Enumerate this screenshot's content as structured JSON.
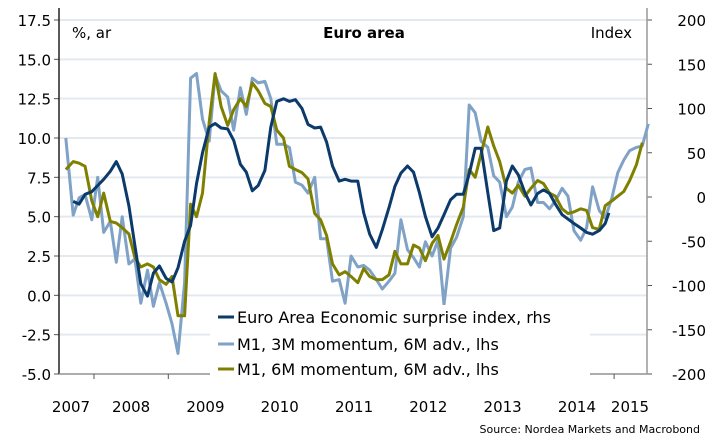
{
  "chart_data": {
    "type": "line",
    "title": "Euro area",
    "left_unit_label": "%, ar",
    "right_unit_label": "Index",
    "source": "Source: Nordea Markets and Macrobond",
    "grid": true,
    "legend_position": "bottom-center",
    "y_left": {
      "range": [
        -5.0,
        17.5
      ],
      "ticks": [
        "17.5",
        "15.0",
        "12.5",
        "10.0",
        "7.5",
        "5.0",
        "2.5",
        "0.0",
        "-2.5",
        "-5.0"
      ],
      "tick_values": [
        17.5,
        15,
        12.5,
        10,
        7.5,
        5,
        2.5,
        0,
        -2.5,
        -5
      ]
    },
    "y_right": {
      "range": [
        -200,
        200
      ],
      "ticks": [
        "200",
        "150",
        "100",
        "50",
        "0",
        "-50",
        "-100",
        "-150",
        "-200"
      ],
      "tick_values": [
        200,
        150,
        100,
        50,
        0,
        -50,
        -100,
        -150,
        -200
      ]
    },
    "x": {
      "range": [
        2007.62,
        2015.9
      ],
      "tick_labels": [
        "2007",
        "2008",
        "2009",
        "2010",
        "2011",
        "2012",
        "2013",
        "2014",
        "2015"
      ],
      "label_years": [
        2007,
        2008,
        2009,
        2010,
        2011,
        2012,
        2013,
        2014,
        2015
      ],
      "boundary_ticks": [
        2008,
        2009,
        2010,
        2011,
        2012,
        2013,
        2014,
        2015
      ]
    },
    "colors": {
      "surprise": "#0b3a6b",
      "m1_3m": "#7fa2c6",
      "m1_6m": "#808000",
      "grid": "#e3e9ef",
      "axis": "#555555"
    },
    "series": [
      {
        "name": "Euro Area Economic surprise index, rhs",
        "axis": "right",
        "color_key": "surprise",
        "points": [
          [
            2007.72,
            -5
          ],
          [
            2007.8,
            -8
          ],
          [
            2007.88,
            3
          ],
          [
            2007.97,
            6
          ],
          [
            2008.05,
            13
          ],
          [
            2008.13,
            20
          ],
          [
            2008.22,
            29
          ],
          [
            2008.3,
            40
          ],
          [
            2008.38,
            26
          ],
          [
            2008.47,
            -10
          ],
          [
            2008.55,
            -55
          ],
          [
            2008.63,
            -98
          ],
          [
            2008.72,
            -112
          ],
          [
            2008.8,
            -86
          ],
          [
            2008.88,
            -78
          ],
          [
            2008.97,
            -92
          ],
          [
            2009.05,
            -96
          ],
          [
            2009.13,
            -80
          ],
          [
            2009.22,
            -50
          ],
          [
            2009.3,
            -32
          ],
          [
            2009.38,
            15
          ],
          [
            2009.46,
            50
          ],
          [
            2009.55,
            79
          ],
          [
            2009.63,
            83
          ],
          [
            2009.71,
            78
          ],
          [
            2009.8,
            77
          ],
          [
            2009.88,
            64
          ],
          [
            2009.97,
            37
          ],
          [
            2010.05,
            28
          ],
          [
            2010.13,
            7
          ],
          [
            2010.21,
            13
          ],
          [
            2010.3,
            30
          ],
          [
            2010.38,
            79
          ],
          [
            2010.46,
            108
          ],
          [
            2010.55,
            111
          ],
          [
            2010.63,
            108
          ],
          [
            2010.71,
            110
          ],
          [
            2010.8,
            100
          ],
          [
            2010.88,
            82
          ],
          [
            2010.97,
            78
          ],
          [
            2011.05,
            79
          ],
          [
            2011.13,
            62
          ],
          [
            2011.21,
            35
          ],
          [
            2011.3,
            18
          ],
          [
            2011.38,
            20
          ],
          [
            2011.46,
            18
          ],
          [
            2011.55,
            18
          ],
          [
            2011.63,
            -18
          ],
          [
            2011.71,
            -42
          ],
          [
            2011.8,
            -57
          ],
          [
            2011.88,
            -37
          ],
          [
            2011.97,
            -12
          ],
          [
            2012.05,
            12
          ],
          [
            2012.13,
            27
          ],
          [
            2012.22,
            35
          ],
          [
            2012.3,
            28
          ],
          [
            2012.38,
            5
          ],
          [
            2012.46,
            -22
          ],
          [
            2012.55,
            -45
          ],
          [
            2012.63,
            -35
          ],
          [
            2012.71,
            -20
          ],
          [
            2012.8,
            -3
          ],
          [
            2012.88,
            3
          ],
          [
            2012.97,
            3
          ],
          [
            2013.05,
            26
          ],
          [
            2013.13,
            55
          ],
          [
            2013.21,
            55
          ],
          [
            2013.3,
            5
          ],
          [
            2013.38,
            -38
          ],
          [
            2013.46,
            -35
          ],
          [
            2013.55,
            18
          ],
          [
            2013.63,
            35
          ],
          [
            2013.71,
            25
          ],
          [
            2013.8,
            5
          ],
          [
            2013.88,
            -9
          ],
          [
            2013.97,
            4
          ],
          [
            2014.05,
            8
          ],
          [
            2014.13,
            4
          ],
          [
            2014.21,
            -8
          ],
          [
            2014.3,
            -20
          ],
          [
            2014.38,
            -25
          ],
          [
            2014.46,
            -30
          ],
          [
            2014.55,
            -35
          ],
          [
            2014.63,
            -40
          ],
          [
            2014.71,
            -42
          ],
          [
            2014.8,
            -38
          ],
          [
            2014.88,
            -30
          ],
          [
            2014.93,
            -18
          ]
        ]
      },
      {
        "name": "M1, 3M momentum, 6M adv., lhs",
        "axis": "left",
        "color_key": "m1_3m",
        "points": [
          [
            2007.62,
            10.0
          ],
          [
            2007.72,
            5.1
          ],
          [
            2007.8,
            6.2
          ],
          [
            2007.88,
            6.4
          ],
          [
            2007.97,
            4.8
          ],
          [
            2008.05,
            7.5
          ],
          [
            2008.13,
            4.0
          ],
          [
            2008.22,
            4.7
          ],
          [
            2008.3,
            2.1
          ],
          [
            2008.38,
            5.0
          ],
          [
            2008.47,
            2.0
          ],
          [
            2008.55,
            2.3
          ],
          [
            2008.63,
            -0.5
          ],
          [
            2008.72,
            1.6
          ],
          [
            2008.8,
            -0.7
          ],
          [
            2008.88,
            0.8
          ],
          [
            2008.97,
            -0.5
          ],
          [
            2009.05,
            -1.8
          ],
          [
            2009.13,
            -3.7
          ],
          [
            2009.22,
            0.8
          ],
          [
            2009.3,
            13.8
          ],
          [
            2009.38,
            14.1
          ],
          [
            2009.46,
            11.2
          ],
          [
            2009.55,
            9.8
          ],
          [
            2009.63,
            14.0
          ],
          [
            2009.71,
            13.0
          ],
          [
            2009.8,
            12.6
          ],
          [
            2009.88,
            10.5
          ],
          [
            2009.97,
            13.2
          ],
          [
            2010.05,
            11.5
          ],
          [
            2010.13,
            13.8
          ],
          [
            2010.21,
            13.5
          ],
          [
            2010.3,
            13.6
          ],
          [
            2010.38,
            12.5
          ],
          [
            2010.46,
            9.6
          ],
          [
            2010.55,
            9.6
          ],
          [
            2010.63,
            9.4
          ],
          [
            2010.71,
            7.2
          ],
          [
            2010.8,
            7.0
          ],
          [
            2010.88,
            6.5
          ],
          [
            2010.97,
            7.5
          ],
          [
            2011.05,
            3.6
          ],
          [
            2011.13,
            3.6
          ],
          [
            2011.21,
            0.9
          ],
          [
            2011.3,
            1.0
          ],
          [
            2011.38,
            -0.5
          ],
          [
            2011.46,
            2.5
          ],
          [
            2011.55,
            1.8
          ],
          [
            2011.63,
            1.9
          ],
          [
            2011.71,
            1.6
          ],
          [
            2011.8,
            1.0
          ],
          [
            2011.88,
            0.4
          ],
          [
            2011.97,
            0.9
          ],
          [
            2012.05,
            1.4
          ],
          [
            2012.13,
            4.8
          ],
          [
            2012.22,
            2.9
          ],
          [
            2012.3,
            2.4
          ],
          [
            2012.38,
            1.8
          ],
          [
            2012.46,
            3.4
          ],
          [
            2012.55,
            2.5
          ],
          [
            2012.63,
            3.5
          ],
          [
            2012.71,
            -0.6
          ],
          [
            2012.8,
            3.0
          ],
          [
            2012.88,
            3.7
          ],
          [
            2012.97,
            5.0
          ],
          [
            2013.05,
            12.1
          ],
          [
            2013.13,
            11.6
          ],
          [
            2013.21,
            9.8
          ],
          [
            2013.3,
            9.4
          ],
          [
            2013.38,
            7.6
          ],
          [
            2013.46,
            7.2
          ],
          [
            2013.55,
            5.0
          ],
          [
            2013.63,
            5.6
          ],
          [
            2013.71,
            7.2
          ],
          [
            2013.8,
            8.0
          ],
          [
            2013.88,
            8.1
          ],
          [
            2013.97,
            5.9
          ],
          [
            2014.05,
            5.9
          ],
          [
            2014.13,
            5.5
          ],
          [
            2014.21,
            6.0
          ],
          [
            2014.3,
            6.8
          ],
          [
            2014.38,
            6.3
          ],
          [
            2014.46,
            4.1
          ],
          [
            2014.55,
            3.5
          ],
          [
            2014.63,
            4.3
          ],
          [
            2014.71,
            6.9
          ],
          [
            2014.8,
            5.4
          ],
          [
            2014.88,
            4.9
          ],
          [
            2014.97,
            6.2
          ],
          [
            2015.05,
            7.8
          ],
          [
            2015.13,
            8.6
          ],
          [
            2015.21,
            9.2
          ],
          [
            2015.3,
            9.4
          ],
          [
            2015.38,
            9.5
          ],
          [
            2015.46,
            10.9
          ]
        ]
      },
      {
        "name": "M1, 6M momentum, 6M adv., lhs",
        "axis": "left",
        "color_key": "m1_6m",
        "points": [
          [
            2007.62,
            8.0
          ],
          [
            2007.72,
            8.5
          ],
          [
            2007.8,
            8.4
          ],
          [
            2007.88,
            8.2
          ],
          [
            2007.97,
            6.0
          ],
          [
            2008.05,
            5.0
          ],
          [
            2008.13,
            6.5
          ],
          [
            2008.22,
            4.7
          ],
          [
            2008.3,
            4.6
          ],
          [
            2008.38,
            4.3
          ],
          [
            2008.47,
            3.9
          ],
          [
            2008.55,
            2.4
          ],
          [
            2008.63,
            1.8
          ],
          [
            2008.72,
            2.0
          ],
          [
            2008.8,
            1.8
          ],
          [
            2008.88,
            1.0
          ],
          [
            2008.97,
            0.7
          ],
          [
            2009.05,
            1.2
          ],
          [
            2009.13,
            -1.3
          ],
          [
            2009.22,
            -1.3
          ],
          [
            2009.3,
            5.8
          ],
          [
            2009.38,
            5.0
          ],
          [
            2009.46,
            6.5
          ],
          [
            2009.55,
            11.0
          ],
          [
            2009.63,
            14.1
          ],
          [
            2009.71,
            12.0
          ],
          [
            2009.8,
            10.8
          ],
          [
            2009.88,
            11.8
          ],
          [
            2009.97,
            12.5
          ],
          [
            2010.05,
            12.0
          ],
          [
            2010.13,
            13.5
          ],
          [
            2010.21,
            13.0
          ],
          [
            2010.3,
            12.2
          ],
          [
            2010.38,
            12.0
          ],
          [
            2010.46,
            10.5
          ],
          [
            2010.55,
            10.0
          ],
          [
            2010.63,
            8.2
          ],
          [
            2010.71,
            8.0
          ],
          [
            2010.8,
            7.8
          ],
          [
            2010.88,
            7.4
          ],
          [
            2010.97,
            5.2
          ],
          [
            2011.05,
            4.8
          ],
          [
            2011.13,
            3.8
          ],
          [
            2011.21,
            2.0
          ],
          [
            2011.3,
            1.3
          ],
          [
            2011.38,
            1.5
          ],
          [
            2011.46,
            1.2
          ],
          [
            2011.55,
            0.8
          ],
          [
            2011.63,
            1.7
          ],
          [
            2011.71,
            1.2
          ],
          [
            2011.8,
            1.0
          ],
          [
            2011.88,
            1.0
          ],
          [
            2011.97,
            1.3
          ],
          [
            2012.05,
            2.8
          ],
          [
            2012.13,
            2.0
          ],
          [
            2012.22,
            2.0
          ],
          [
            2012.3,
            3.2
          ],
          [
            2012.38,
            3.0
          ],
          [
            2012.46,
            2.2
          ],
          [
            2012.55,
            3.3
          ],
          [
            2012.63,
            3.8
          ],
          [
            2012.71,
            2.3
          ],
          [
            2012.8,
            3.4
          ],
          [
            2012.88,
            4.5
          ],
          [
            2012.97,
            5.6
          ],
          [
            2013.05,
            8.0
          ],
          [
            2013.13,
            7.5
          ],
          [
            2013.21,
            9.0
          ],
          [
            2013.3,
            10.7
          ],
          [
            2013.38,
            9.5
          ],
          [
            2013.46,
            8.5
          ],
          [
            2013.55,
            6.8
          ],
          [
            2013.63,
            6.5
          ],
          [
            2013.71,
            7.0
          ],
          [
            2013.8,
            6.3
          ],
          [
            2013.88,
            6.8
          ],
          [
            2013.97,
            7.3
          ],
          [
            2014.05,
            7.1
          ],
          [
            2014.13,
            6.5
          ],
          [
            2014.21,
            6.3
          ],
          [
            2014.3,
            5.5
          ],
          [
            2014.38,
            5.2
          ],
          [
            2014.46,
            5.3
          ],
          [
            2014.55,
            5.5
          ],
          [
            2014.63,
            5.4
          ],
          [
            2014.71,
            4.3
          ],
          [
            2014.8,
            4.2
          ],
          [
            2014.88,
            5.7
          ],
          [
            2014.97,
            6.0
          ],
          [
            2015.05,
            6.3
          ],
          [
            2015.13,
            6.6
          ],
          [
            2015.21,
            7.3
          ],
          [
            2015.3,
            8.3
          ],
          [
            2015.38,
            9.7
          ]
        ]
      }
    ]
  }
}
